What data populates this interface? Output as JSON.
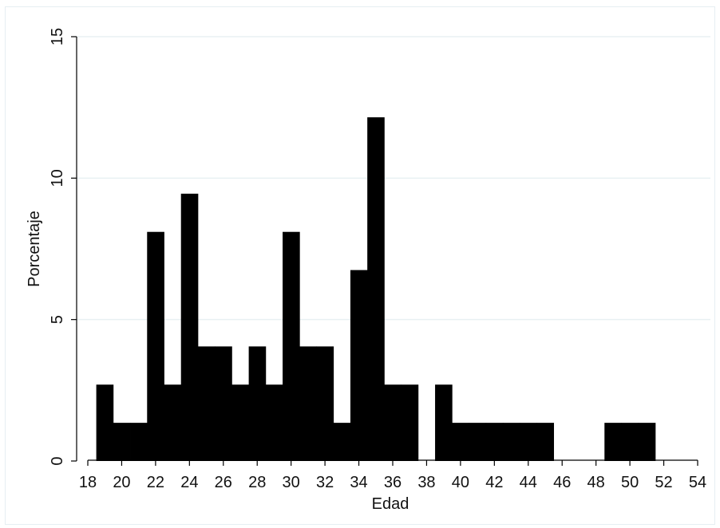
{
  "chart_data": {
    "type": "bar",
    "title": "",
    "xlabel": "Edad",
    "ylabel": "Porcentaje",
    "xlim": [
      18,
      54
    ],
    "ylim": [
      0,
      15
    ],
    "bin_width": 1,
    "x_ticks": [
      "18",
      "20",
      "22",
      "24",
      "26",
      "28",
      "30",
      "32",
      "34",
      "36",
      "38",
      "40",
      "42",
      "44",
      "46",
      "48",
      "50",
      "52",
      "54"
    ],
    "y_ticks": [
      "0",
      "5",
      "10",
      "15"
    ],
    "grid": true,
    "bar_color": "#000000",
    "bins": [
      {
        "start": 18.5,
        "end": 19.5,
        "value": 2.7
      },
      {
        "start": 19.5,
        "end": 20.5,
        "value": 1.35
      },
      {
        "start": 20.5,
        "end": 21.5,
        "value": 1.35
      },
      {
        "start": 21.5,
        "end": 22.5,
        "value": 8.1
      },
      {
        "start": 22.5,
        "end": 23.5,
        "value": 2.7
      },
      {
        "start": 23.5,
        "end": 24.5,
        "value": 9.45
      },
      {
        "start": 24.5,
        "end": 25.5,
        "value": 4.05
      },
      {
        "start": 25.5,
        "end": 26.5,
        "value": 4.05
      },
      {
        "start": 26.5,
        "end": 27.5,
        "value": 2.7
      },
      {
        "start": 27.5,
        "end": 28.5,
        "value": 4.05
      },
      {
        "start": 28.5,
        "end": 29.5,
        "value": 2.7
      },
      {
        "start": 29.5,
        "end": 30.5,
        "value": 8.1
      },
      {
        "start": 30.5,
        "end": 31.5,
        "value": 4.05
      },
      {
        "start": 31.5,
        "end": 32.5,
        "value": 4.05
      },
      {
        "start": 32.5,
        "end": 33.5,
        "value": 1.35
      },
      {
        "start": 33.5,
        "end": 34.5,
        "value": 6.75
      },
      {
        "start": 34.5,
        "end": 35.5,
        "value": 12.15
      },
      {
        "start": 35.5,
        "end": 36.5,
        "value": 2.7
      },
      {
        "start": 36.5,
        "end": 37.5,
        "value": 2.7
      },
      {
        "start": 38.5,
        "end": 39.5,
        "value": 2.7
      },
      {
        "start": 39.5,
        "end": 40.5,
        "value": 1.35
      },
      {
        "start": 40.5,
        "end": 41.5,
        "value": 1.35
      },
      {
        "start": 41.5,
        "end": 42.5,
        "value": 1.35
      },
      {
        "start": 42.5,
        "end": 43.5,
        "value": 1.35
      },
      {
        "start": 43.5,
        "end": 44.5,
        "value": 1.35
      },
      {
        "start": 44.5,
        "end": 45.5,
        "value": 1.35
      },
      {
        "start": 48.5,
        "end": 49.5,
        "value": 1.35
      },
      {
        "start": 49.5,
        "end": 50.5,
        "value": 1.35
      },
      {
        "start": 50.5,
        "end": 51.5,
        "value": 1.35
      }
    ]
  }
}
